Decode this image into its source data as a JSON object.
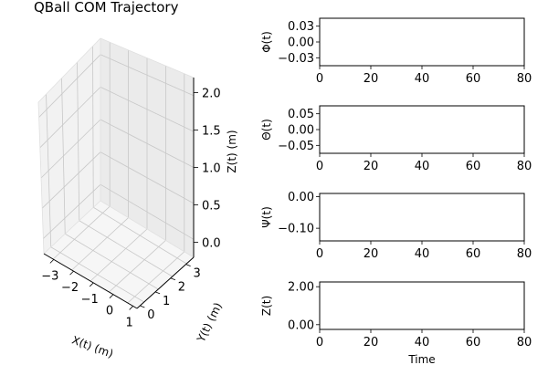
{
  "chart_data": [
    {
      "type": "scatter3d",
      "title": "QBall COM Trajectory",
      "xlabel": "X(t) (m)",
      "ylabel": "Y(t) (m)",
      "zlabel": "Z(t) (m)",
      "x_ticks": [
        "−3",
        "−2",
        "−1",
        "0",
        "1"
      ],
      "y_ticks": [
        "0",
        "1",
        "2",
        "3"
      ],
      "z_ticks": [
        "0.0",
        "0.5",
        "1.0",
        "1.5",
        "2.0"
      ],
      "xlim": [
        -3.5,
        1.2
      ],
      "ylim": [
        -0.2,
        3.5
      ],
      "zlim": [
        -0.2,
        2.2
      ],
      "grid": true,
      "series": []
    },
    {
      "type": "line",
      "ylabel": "Φ(t)",
      "xlabel": "",
      "x_ticks": [
        "0",
        "20",
        "40",
        "60",
        "80"
      ],
      "y_ticks": [
        "0.03",
        "0.00",
        "−0.03"
      ],
      "xlim": [
        0,
        80
      ],
      "ylim": [
        -0.045,
        0.045
      ],
      "series": []
    },
    {
      "type": "line",
      "ylabel": "Θ(t)",
      "xlabel": "",
      "x_ticks": [
        "0",
        "20",
        "40",
        "60",
        "80"
      ],
      "y_ticks": [
        "0.05",
        "0.00",
        "−0.05"
      ],
      "xlim": [
        0,
        80
      ],
      "ylim": [
        -0.075,
        0.075
      ],
      "series": []
    },
    {
      "type": "line",
      "ylabel": "Ψ(t)",
      "xlabel": "",
      "x_ticks": [
        "0",
        "20",
        "40",
        "60",
        "80"
      ],
      "y_ticks": [
        "0.00",
        "−0.10"
      ],
      "xlim": [
        0,
        80
      ],
      "ylim": [
        -0.14,
        0.01
      ],
      "series": []
    },
    {
      "type": "line",
      "ylabel": "Z(t)",
      "xlabel": "Time",
      "x_ticks": [
        "0",
        "20",
        "40",
        "60",
        "80"
      ],
      "y_ticks": [
        "2.00",
        "0.00"
      ],
      "xlim": [
        0,
        80
      ],
      "ylim": [
        -0.25,
        2.25
      ],
      "series": []
    }
  ]
}
